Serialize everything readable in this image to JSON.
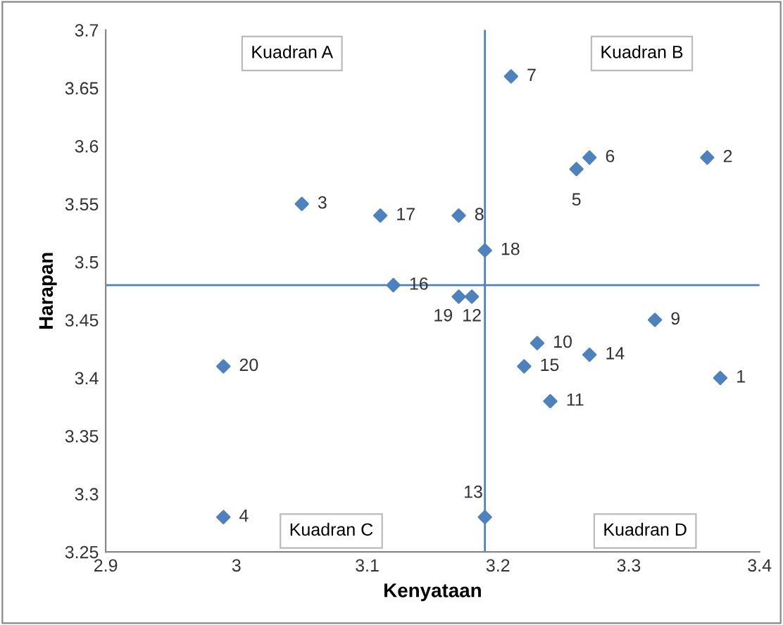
{
  "chart_data": {
    "type": "scatter",
    "xlabel": "Kenyataan",
    "ylabel": "Harapan",
    "x": [
      3.37,
      3.36,
      3.05,
      2.99,
      3.26,
      3.27,
      3.21,
      3.17,
      3.32,
      3.23,
      3.24,
      3.18,
      3.19,
      3.27,
      3.22,
      3.12,
      3.11,
      3.19,
      3.17,
      2.99
    ],
    "series": [
      {
        "color": "#4f81bd",
        "values": [
          3.4,
          3.59,
          3.55,
          3.28,
          3.58,
          3.59,
          3.66,
          3.54,
          3.45,
          3.43,
          3.38,
          3.47,
          3.28,
          3.42,
          3.41,
          3.48,
          3.54,
          3.51,
          3.47,
          3.41
        ]
      }
    ],
    "marker": "diamond",
    "xlim": [
      2.9,
      3.4
    ],
    "xticks": [
      2.9,
      3,
      3.1,
      3.2,
      3.3,
      3.4
    ],
    "ylim": [
      3.25,
      3.7
    ],
    "yticks": [
      3.25,
      3.3,
      3.35,
      3.4,
      3.45,
      3.5,
      3.55,
      3.6,
      3.65,
      3.7
    ],
    "ref_lines": [
      {
        "axis": "x",
        "value": 3.19,
        "color": "#4f81bd"
      },
      {
        "axis": "y",
        "value": 3.48,
        "color": "#4f81bd"
      }
    ],
    "annotations": [
      "Kuadran A",
      "Kuadran B",
      "Kuadran C",
      "Kuadran D",
      {
        "text": "1",
        "x": 3.37,
        "y": 3.4
      },
      {
        "text": "2",
        "x": 3.36,
        "y": 3.59
      },
      {
        "text": "3",
        "x": 3.05,
        "y": 3.55
      },
      {
        "text": "4",
        "x": 2.99,
        "y": 3.28
      },
      {
        "text": "5",
        "x": 3.26,
        "y": 3.58
      },
      {
        "text": "6",
        "x": 3.27,
        "y": 3.59
      },
      {
        "text": "7",
        "x": 3.21,
        "y": 3.66
      },
      {
        "text": "8",
        "x": 3.17,
        "y": 3.54
      },
      {
        "text": "9",
        "x": 3.32,
        "y": 3.45
      },
      {
        "text": "10",
        "x": 3.23,
        "y": 3.43
      },
      {
        "text": "11",
        "x": 3.24,
        "y": 3.38
      },
      {
        "text": "12",
        "x": 3.18,
        "y": 3.47
      },
      {
        "text": "13",
        "x": 3.19,
        "y": 3.28
      },
      {
        "text": "14",
        "x": 3.27,
        "y": 3.42
      },
      {
        "text": "15",
        "x": 3.22,
        "y": 3.41
      },
      {
        "text": "16",
        "x": 3.12,
        "y": 3.48
      },
      {
        "text": "17",
        "x": 3.11,
        "y": 3.54
      },
      {
        "text": "18",
        "x": 3.19,
        "y": 3.51
      },
      {
        "text": "19",
        "x": 3.17,
        "y": 3.47
      },
      {
        "text": "20",
        "x": 2.99,
        "y": 3.41
      }
    ]
  }
}
